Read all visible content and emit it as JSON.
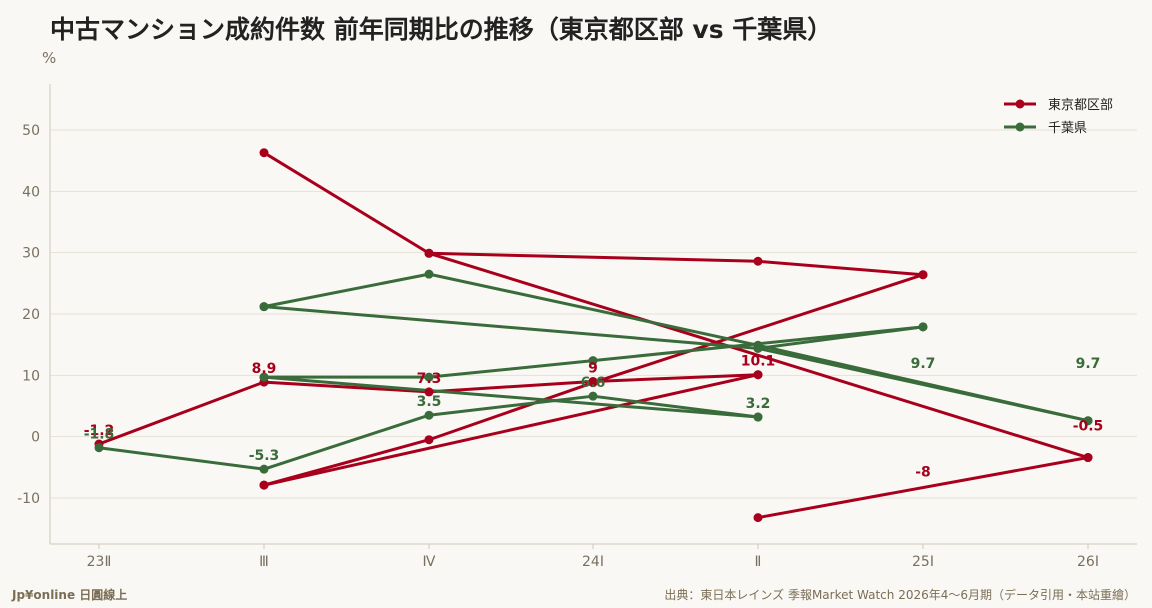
{
  "header": {
    "title": "中古マンション成約件数 前年同期比の推移（東京都区部 vs 千葉県）",
    "unit": "%"
  },
  "footer": {
    "brand": "Jp¥online 日圓線上",
    "source": "出典：東日本レインズ 季報Market Watch 2026年4～6月期（データ引用・本站重繪）"
  },
  "colors": {
    "tokyo": "#a8001c",
    "chiba": "#3a6b3a"
  },
  "chart_data": {
    "type": "line",
    "categories": [
      "23Ⅱ",
      "Ⅲ",
      "Ⅳ",
      "24Ⅰ",
      "Ⅱ",
      "25Ⅰ",
      "26Ⅰ"
    ],
    "ylabel": "%",
    "ylim": [
      -17.5,
      57.5
    ],
    "yticks": [
      -10,
      0,
      10,
      20,
      30,
      40,
      50
    ],
    "grid": true,
    "legend_position": "top-right",
    "series": [
      {
        "name": "東京都区部",
        "color": "#a8001c",
        "points": [
          [
            0,
            -1.2
          ],
          [
            1,
            8.9
          ],
          [
            2,
            7.3
          ],
          [
            3,
            9
          ],
          [
            4,
            10.1
          ],
          null,
          [
            1,
            46.3
          ],
          [
            2,
            29.9
          ],
          [
            4,
            28.6
          ],
          [
            5,
            26.4
          ],
          null,
          [
            1,
            -7.9
          ],
          [
            2,
            -0.5
          ],
          [
            3,
            8.8
          ],
          [
            5,
            26.4
          ],
          null,
          [
            1,
            -7.9
          ],
          [
            4,
            10.1
          ],
          null,
          [
            2,
            29.9
          ],
          [
            6,
            -3.4
          ],
          null,
          [
            4,
            -13.2
          ],
          [
            6,
            -3.4
          ]
        ],
        "labels": [
          {
            "x": 0,
            "y": -1.2,
            "text": "-1.2"
          },
          {
            "x": 1,
            "y": 8.9,
            "text": "8.9"
          },
          {
            "x": 2,
            "y": 7.3,
            "text": "7.3"
          },
          {
            "x": 3,
            "y": 9,
            "text": "9"
          },
          {
            "x": 4,
            "y": 10.1,
            "text": "10.1"
          },
          {
            "x": 5,
            "y": -8,
            "text": "-8"
          },
          {
            "x": 6,
            "y": -0.5,
            "text": "-0.5"
          }
        ]
      },
      {
        "name": "千葉県",
        "color": "#3a6b3a",
        "points": [
          [
            0,
            -1.8
          ],
          [
            1,
            -5.3
          ],
          [
            2,
            3.5
          ],
          [
            3,
            6.6
          ],
          [
            4,
            3.2
          ],
          null,
          [
            1,
            21.2
          ],
          [
            2,
            26.5
          ],
          [
            4,
            14.9
          ],
          [
            6,
            2.6
          ],
          null,
          [
            1,
            21.2
          ],
          [
            4,
            14.4
          ],
          [
            6,
            2.6
          ],
          null,
          [
            1,
            9.7
          ],
          [
            2,
            9.7
          ],
          [
            3,
            12.4
          ],
          [
            5,
            17.9
          ],
          null,
          [
            1,
            9.7
          ],
          [
            4,
            3.2
          ],
          null,
          [
            4,
            14.4
          ],
          [
            5,
            17.9
          ]
        ],
        "labels": [
          {
            "x": 0,
            "y": -1.8,
            "text": "-1.8"
          },
          {
            "x": 1,
            "y": -5.3,
            "text": "-5.3"
          },
          {
            "x": 2,
            "y": 3.5,
            "text": "3.5"
          },
          {
            "x": 3,
            "y": 6.6,
            "text": "6.6"
          },
          {
            "x": 4,
            "y": 3.2,
            "text": "3.2"
          },
          {
            "x": 5,
            "y": 9.7,
            "text": "9.7"
          },
          {
            "x": 6,
            "y": 9.7,
            "text": "9.7"
          }
        ]
      }
    ]
  }
}
